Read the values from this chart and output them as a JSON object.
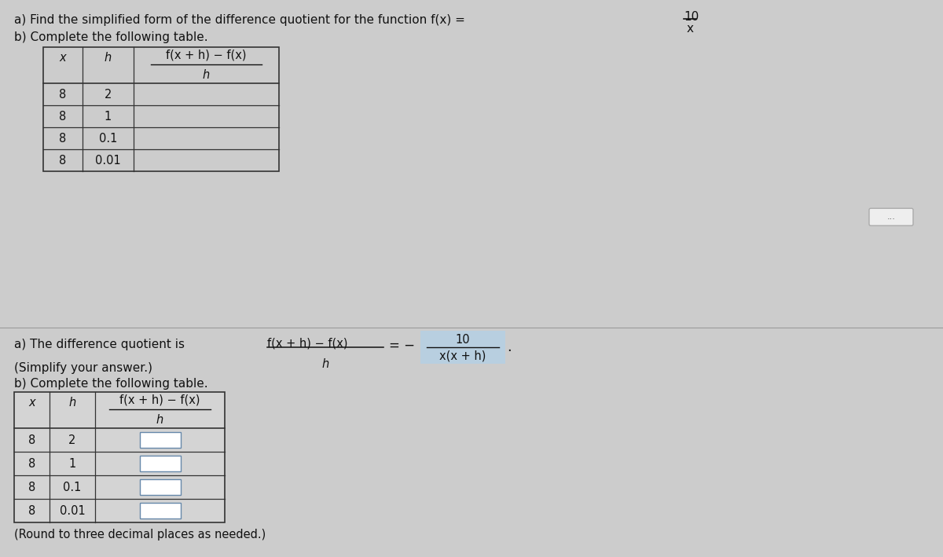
{
  "bg_color_top": "#cccccc",
  "bg_color_bot": "#d4d4d4",
  "title_a": "a) Find the simplified form of the difference quotient for the function f(x) =",
  "title_b_top": "b) Complete the following table.",
  "fx_numerator": "10",
  "fx_denominator": "x",
  "table1_rows": [
    [
      "8",
      "2"
    ],
    [
      "8",
      "1"
    ],
    [
      "8",
      "0.1"
    ],
    [
      "8",
      "0.01"
    ]
  ],
  "answer_a_text": "a) The difference quotient is",
  "answer_a_fraction_num": "f(x + h) − f(x)",
  "answer_a_fraction_den": "h",
  "answer_a_result_num": "10",
  "answer_a_result_den": "x(x + h)",
  "simplify_text": "(Simplify your answer.)",
  "answer_b_title": "b) Complete the following table.",
  "table2_rows": [
    [
      "8",
      "2"
    ],
    [
      "8",
      "1"
    ],
    [
      "8",
      "0.1"
    ],
    [
      "8",
      "0.01"
    ]
  ],
  "round_text": "(Round to three decimal places as needed.)",
  "dots_button": "...",
  "font_size_main": 11,
  "font_size_table": 10.5,
  "text_color": "#111111",
  "result_box_color": "#b8cfe0",
  "input_box_color": "#ffffff"
}
